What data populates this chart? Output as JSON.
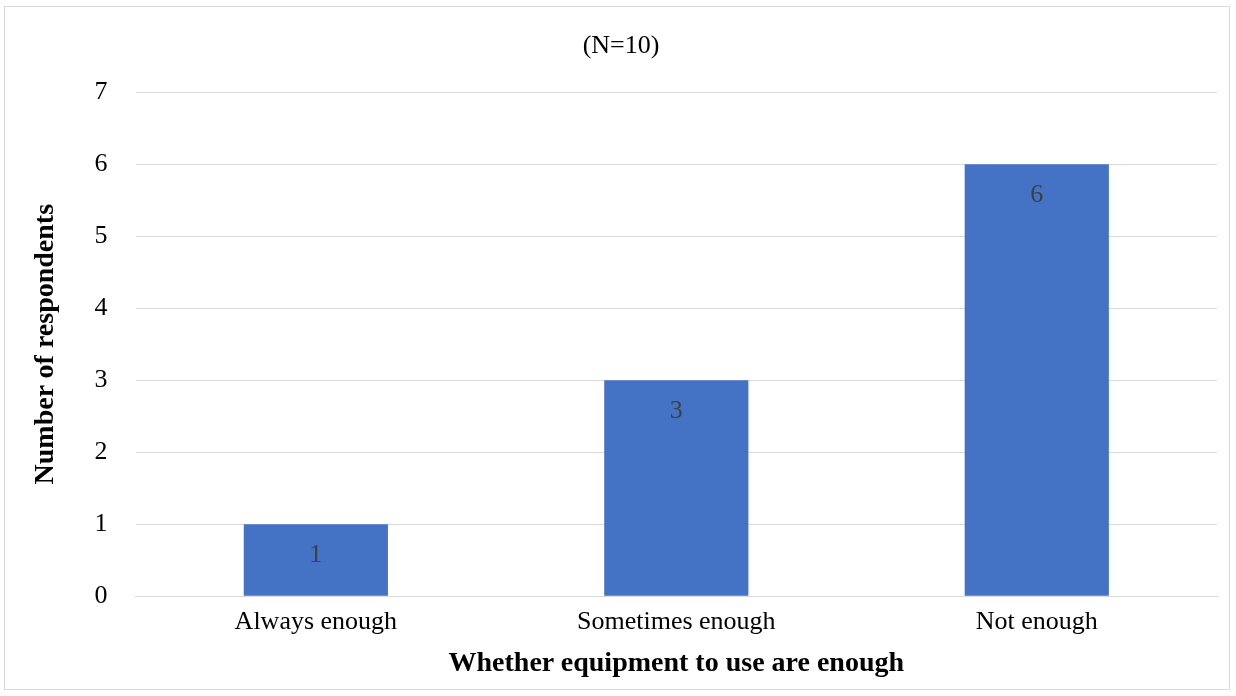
{
  "chart_data": {
    "type": "bar",
    "title": "(N=10)",
    "xlabel": "Whether equipment to use are enough",
    "ylabel": "Number of respondents",
    "categories": [
      "Always enough",
      "Sometimes enough",
      "Not enough"
    ],
    "values": [
      1,
      3,
      6
    ],
    "color": "#4472c4",
    "ylim": [
      0,
      7
    ],
    "yticks": [
      0,
      1,
      2,
      3,
      4,
      5,
      6,
      7
    ],
    "grid": "y",
    "data_labels": true,
    "legend": false
  }
}
